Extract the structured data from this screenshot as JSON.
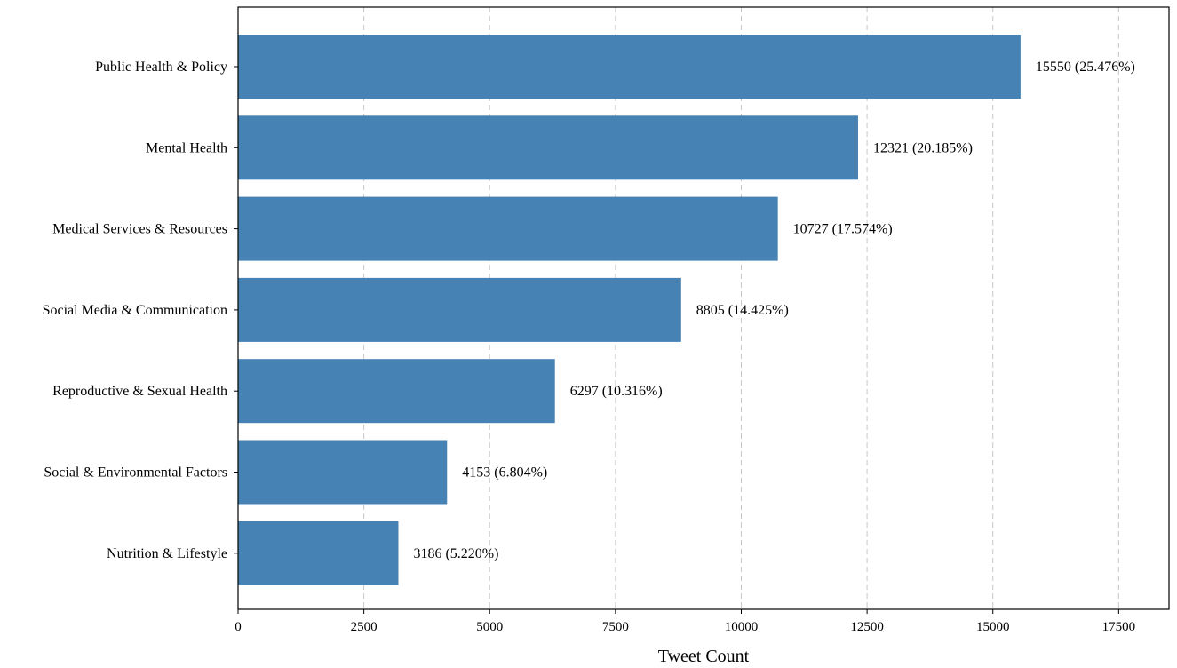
{
  "chart_data": {
    "type": "bar",
    "orientation": "horizontal",
    "categories": [
      "Public Health & Policy",
      "Mental Health",
      "Medical Services & Resources",
      "Social Media & Communication",
      "Reproductive & Sexual Health",
      "Social & Environmental Factors",
      "Nutrition & Lifestyle"
    ],
    "values": [
      15550,
      12321,
      10727,
      8805,
      6297,
      4153,
      3186
    ],
    "data_labels": [
      "15550 (25.476%)",
      "12321 (20.185%)",
      "10727 (17.574%)",
      "8805 (14.425%)",
      "6297 (10.316%)",
      "4153 (6.804%)",
      "3186 (5.220%)"
    ],
    "xlabel": "Tweet Count",
    "ylabel": "",
    "xlim": [
      0,
      18500
    ],
    "xticks": [
      0,
      2500,
      5000,
      7500,
      10000,
      12500,
      15000,
      17500
    ],
    "xtick_labels": [
      "0",
      "2500",
      "5000",
      "7500",
      "10000",
      "12500",
      "15000",
      "17500"
    ],
    "grid": "x-dashed",
    "bar_color": "#4682b4"
  }
}
